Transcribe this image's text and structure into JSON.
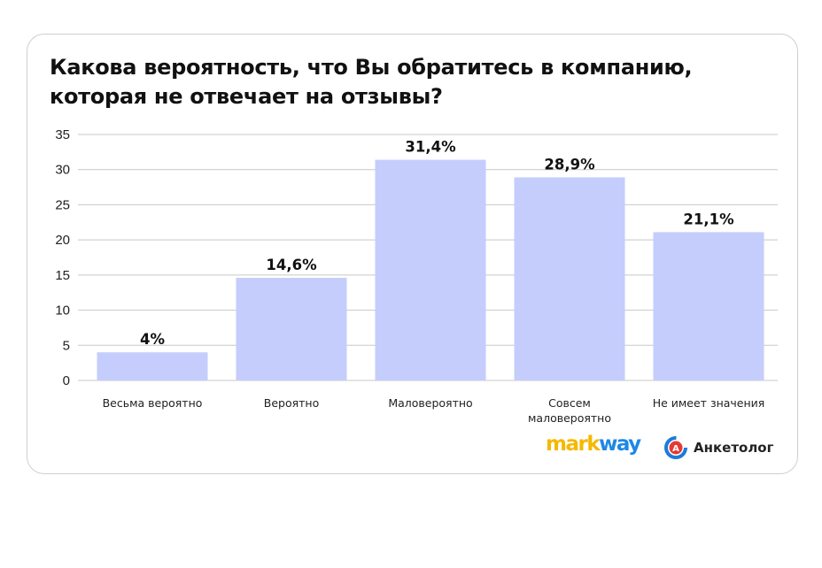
{
  "title": "Какова вероятность, что Вы обратитесь в компанию, которая не отвечает на отзывы?",
  "chart_data": {
    "type": "bar",
    "title": "Какова вероятность, что Вы обратитесь в компанию, которая не отвечает на отзывы?",
    "categories": [
      "Весьма вероятно",
      "Вероятно",
      "Маловероятно",
      "Совсем маловероятно",
      "Не имеет значения"
    ],
    "category_lines": [
      [
        "Весьма вероятно"
      ],
      [
        "Вероятно"
      ],
      [
        "Маловероятно"
      ],
      [
        "Совсем",
        "маловероятно"
      ],
      [
        "Не имеет значения"
      ]
    ],
    "values": [
      4,
      14.6,
      31.4,
      28.9,
      21.1
    ],
    "data_labels": [
      "4%",
      "14,6%",
      "31,4%",
      "28,9%",
      "21,1%"
    ],
    "ylim": [
      0,
      35
    ],
    "yticks": [
      "0",
      "5",
      "10",
      "15",
      "20",
      "25",
      "30",
      "35"
    ],
    "xlabel": "",
    "ylabel": "",
    "grid": true,
    "bar_color": "#c5cdfc",
    "grid_color": "#c8c8c8"
  },
  "logos": {
    "markway": {
      "part1": "mark",
      "part2": "way",
      "color1": "#f5b800",
      "color2": "#1e88e5"
    },
    "anketolog": {
      "text": "Анкетолог",
      "icon_letter": "A",
      "icon_color": "#e53935",
      "ring_color": "#1e7bd8"
    }
  }
}
